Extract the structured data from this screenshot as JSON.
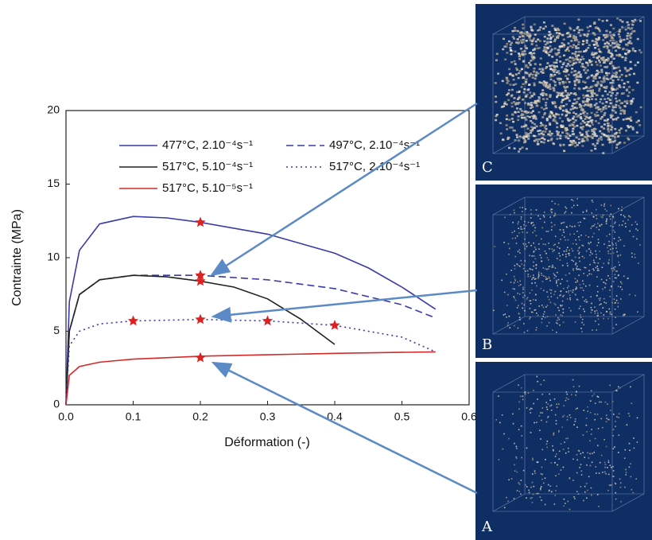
{
  "chart_data": {
    "type": "line",
    "xlabel": "Déformation (-)",
    "ylabel": "Contrainte (MPa)",
    "xlim": [
      0,
      0.6
    ],
    "ylim": [
      0,
      20
    ],
    "xticks": [
      {
        "value": 0,
        "label": "0.0"
      },
      0.1,
      0.2,
      0.3,
      0.4,
      0.5,
      0.6
    ],
    "yticks": [
      0,
      5,
      10,
      15,
      20
    ],
    "series": [
      {
        "name": "477°C, 2.10⁻⁴s⁻¹",
        "color": "#3a3aa8",
        "dash": "solid",
        "x": [
          0,
          0.005,
          0.02,
          0.05,
          0.1,
          0.15,
          0.2,
          0.3,
          0.4,
          0.45,
          0.5,
          0.55
        ],
        "y": [
          0,
          7,
          10.5,
          12.3,
          12.8,
          12.7,
          12.4,
          11.6,
          10.3,
          9.3,
          8,
          6.5
        ]
      },
      {
        "name": "497°C, 2.10⁻⁴s⁻¹",
        "color": "#3a3aa8",
        "dash": "dashed",
        "x": [
          0,
          0.005,
          0.02,
          0.05,
          0.1,
          0.2,
          0.3,
          0.4,
          0.5,
          0.55
        ],
        "y": [
          0,
          5,
          7.5,
          8.5,
          8.8,
          8.8,
          8.5,
          7.9,
          6.8,
          5.9
        ]
      },
      {
        "name": "517°C, 5.10⁻⁴s⁻¹",
        "color": "#222222",
        "dash": "solid",
        "x": [
          0,
          0.005,
          0.02,
          0.05,
          0.1,
          0.15,
          0.2,
          0.25,
          0.3,
          0.35,
          0.4
        ],
        "y": [
          0,
          5,
          7.5,
          8.5,
          8.8,
          8.7,
          8.4,
          8,
          7.2,
          5.8,
          4.1
        ]
      },
      {
        "name": "517°C, 2.10⁻⁴s⁻¹",
        "color": "#3a3aa8",
        "dash": "dotted",
        "x": [
          0,
          0.005,
          0.02,
          0.05,
          0.1,
          0.2,
          0.3,
          0.4,
          0.5,
          0.55
        ],
        "y": [
          0,
          4,
          5,
          5.5,
          5.7,
          5.8,
          5.7,
          5.4,
          4.6,
          3.6
        ]
      },
      {
        "name": "517°C, 5.10⁻⁵s⁻¹",
        "color": "#d42a2a",
        "dash": "solid",
        "x": [
          0,
          0.005,
          0.02,
          0.05,
          0.1,
          0.2,
          0.3,
          0.4,
          0.55
        ],
        "y": [
          0,
          2,
          2.6,
          2.9,
          3.1,
          3.3,
          3.4,
          3.5,
          3.6
        ]
      }
    ],
    "stars": {
      "color": "#e02020",
      "x": [
        0.2,
        0.2,
        0.2,
        0.1,
        0.2,
        0.3,
        0.4,
        0.2
      ],
      "y": [
        12.4,
        8.8,
        8.4,
        5.7,
        5.8,
        5.7,
        5.4,
        3.2
      ]
    }
  },
  "panels": [
    {
      "label": "C"
    },
    {
      "label": "B"
    },
    {
      "label": "A"
    }
  ]
}
